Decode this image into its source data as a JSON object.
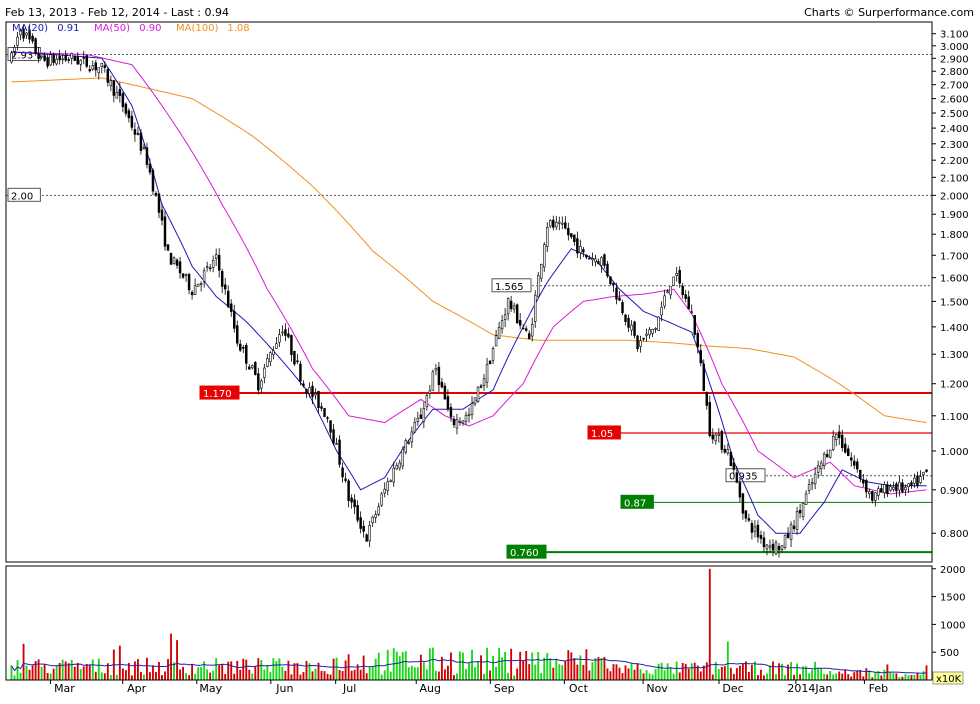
{
  "header": {
    "range_label": "Feb 13, 2013 - Feb 12, 2014 - Last : 0.94",
    "credit": "Charts © Surperformance.com",
    "legend": [
      {
        "label": "MA(20)",
        "value": "0.91",
        "color": "#1a1ab4"
      },
      {
        "label": "MA(50)",
        "value": "0.90",
        "color": "#d81bd8"
      },
      {
        "label": "MA(100)",
        "value": "1.08",
        "color": "#f09020"
      }
    ]
  },
  "colors": {
    "up": "#19d619",
    "down": "#d20000",
    "wick": "#000000",
    "red_line": "#e60000",
    "green_line": "#008000",
    "dashed": "#555555",
    "volume_ma": "#2222aa"
  },
  "chart_data": [
    {
      "type": "candlestick",
      "title": "",
      "y_scale": "log",
      "ylim": [
        0.74,
        3.2
      ],
      "y_ticks": [
        "3.100",
        "3.000",
        "2.900",
        "2.800",
        "2.700",
        "2.600",
        "2.500",
        "2.400",
        "2.300",
        "2.200",
        "2.100",
        "2.000",
        "1.900",
        "1.800",
        "1.700",
        "1.600",
        "1.500",
        "1.400",
        "1.300",
        "1.200",
        "1.100",
        "1.000",
        "0.900",
        "0.800"
      ],
      "x_labels": [
        "Mar",
        "Apr",
        "May",
        "Jun",
        "Jul",
        "Aug",
        "Sep",
        "Oct",
        "Nov",
        "Dec",
        "2014Jan",
        "Feb"
      ],
      "price_anchors": [
        [
          0,
          2.9
        ],
        [
          3,
          3.15
        ],
        [
          10,
          2.88
        ],
        [
          20,
          2.9
        ],
        [
          30,
          2.82
        ],
        [
          37,
          2.55
        ],
        [
          45,
          2.2
        ],
        [
          52,
          1.7
        ],
        [
          60,
          1.55
        ],
        [
          68,
          1.68
        ],
        [
          75,
          1.35
        ],
        [
          82,
          1.2
        ],
        [
          90,
          1.4
        ],
        [
          97,
          1.2
        ],
        [
          105,
          1.1
        ],
        [
          112,
          0.88
        ],
        [
          118,
          0.79
        ],
        [
          124,
          0.9
        ],
        [
          130,
          1.0
        ],
        [
          136,
          1.1
        ],
        [
          141,
          1.25
        ],
        [
          146,
          1.08
        ],
        [
          152,
          1.1
        ],
        [
          158,
          1.25
        ],
        [
          165,
          1.5
        ],
        [
          172,
          1.35
        ],
        [
          178,
          1.85
        ],
        [
          184,
          1.82
        ],
        [
          190,
          1.7
        ],
        [
          196,
          1.68
        ],
        [
          202,
          1.5
        ],
        [
          208,
          1.33
        ],
        [
          214,
          1.4
        ],
        [
          220,
          1.62
        ],
        [
          226,
          1.45
        ],
        [
          232,
          1.06
        ],
        [
          238,
          1.0
        ],
        [
          244,
          0.83
        ],
        [
          250,
          0.78
        ],
        [
          256,
          0.77
        ],
        [
          262,
          0.85
        ],
        [
          268,
          0.95
        ],
        [
          274,
          1.05
        ],
        [
          280,
          0.96
        ],
        [
          286,
          0.88
        ],
        [
          292,
          0.91
        ],
        [
          298,
          0.9
        ],
        [
          304,
          0.94
        ]
      ],
      "ma20_anchors": [
        [
          0,
          2.95
        ],
        [
          20,
          2.92
        ],
        [
          30,
          2.9
        ],
        [
          40,
          2.55
        ],
        [
          50,
          1.95
        ],
        [
          60,
          1.65
        ],
        [
          68,
          1.52
        ],
        [
          78,
          1.42
        ],
        [
          88,
          1.3
        ],
        [
          98,
          1.18
        ],
        [
          108,
          1.0
        ],
        [
          116,
          0.9
        ],
        [
          124,
          0.93
        ],
        [
          132,
          1.03
        ],
        [
          140,
          1.12
        ],
        [
          150,
          1.12
        ],
        [
          160,
          1.18
        ],
        [
          170,
          1.4
        ],
        [
          178,
          1.58
        ],
        [
          186,
          1.73
        ],
        [
          194,
          1.68
        ],
        [
          202,
          1.55
        ],
        [
          210,
          1.46
        ],
        [
          218,
          1.42
        ],
        [
          226,
          1.38
        ],
        [
          232,
          1.2
        ],
        [
          240,
          0.97
        ],
        [
          248,
          0.84
        ],
        [
          254,
          0.8
        ],
        [
          262,
          0.8
        ],
        [
          270,
          0.87
        ],
        [
          276,
          0.95
        ],
        [
          284,
          0.92
        ],
        [
          292,
          0.91
        ],
        [
          304,
          0.91
        ]
      ],
      "ma50_anchors": [
        [
          0,
          2.95
        ],
        [
          25,
          2.93
        ],
        [
          40,
          2.85
        ],
        [
          55,
          2.4
        ],
        [
          70,
          1.95
        ],
        [
          85,
          1.55
        ],
        [
          100,
          1.25
        ],
        [
          112,
          1.1
        ],
        [
          124,
          1.08
        ],
        [
          136,
          1.15
        ],
        [
          144,
          1.1
        ],
        [
          152,
          1.07
        ],
        [
          160,
          1.1
        ],
        [
          170,
          1.2
        ],
        [
          180,
          1.4
        ],
        [
          190,
          1.5
        ],
        [
          200,
          1.52
        ],
        [
          210,
          1.53
        ],
        [
          220,
          1.55
        ],
        [
          226,
          1.45
        ],
        [
          236,
          1.2
        ],
        [
          248,
          1.0
        ],
        [
          260,
          0.93
        ],
        [
          272,
          0.97
        ],
        [
          280,
          0.91
        ],
        [
          292,
          0.89
        ],
        [
          304,
          0.9
        ]
      ],
      "ma100_anchors": [
        [
          0,
          2.72
        ],
        [
          30,
          2.75
        ],
        [
          60,
          2.6
        ],
        [
          80,
          2.35
        ],
        [
          100,
          2.05
        ],
        [
          120,
          1.72
        ],
        [
          140,
          1.5
        ],
        [
          160,
          1.37
        ],
        [
          175,
          1.35
        ],
        [
          190,
          1.35
        ],
        [
          205,
          1.35
        ],
        [
          220,
          1.34
        ],
        [
          230,
          1.33
        ],
        [
          245,
          1.32
        ],
        [
          260,
          1.29
        ],
        [
          275,
          1.2
        ],
        [
          290,
          1.1
        ],
        [
          304,
          1.08
        ]
      ],
      "levels": [
        {
          "label": "2.93",
          "value": 2.93,
          "style": "dashed",
          "label_at": "left"
        },
        {
          "label": "2.00",
          "value": 2.0,
          "style": "dashed",
          "label_at": "left"
        },
        {
          "label": "1.565",
          "value": 1.565,
          "style": "dashed",
          "label_at": "sep"
        },
        {
          "label": "1.170",
          "value": 1.17,
          "style": "red",
          "label_at": "may"
        },
        {
          "label": "1.05",
          "value": 1.05,
          "style": "red",
          "label_at": "oct"
        },
        {
          "label": "0.935",
          "value": 0.935,
          "style": "dashed",
          "label_at": "dec"
        },
        {
          "label": "0.87",
          "value": 0.87,
          "style": "green",
          "label_at": "nov"
        },
        {
          "label": "0.760",
          "value": 0.76,
          "style": "green",
          "label_at": "sep-end"
        }
      ]
    },
    {
      "type": "bar",
      "title": "",
      "ylim": [
        0,
        2050
      ],
      "y_ticks": [
        "2000",
        "1500",
        "1000",
        "500"
      ],
      "unit_badge": "x10K",
      "spike": {
        "index": 232,
        "value": 2000
      }
    }
  ]
}
